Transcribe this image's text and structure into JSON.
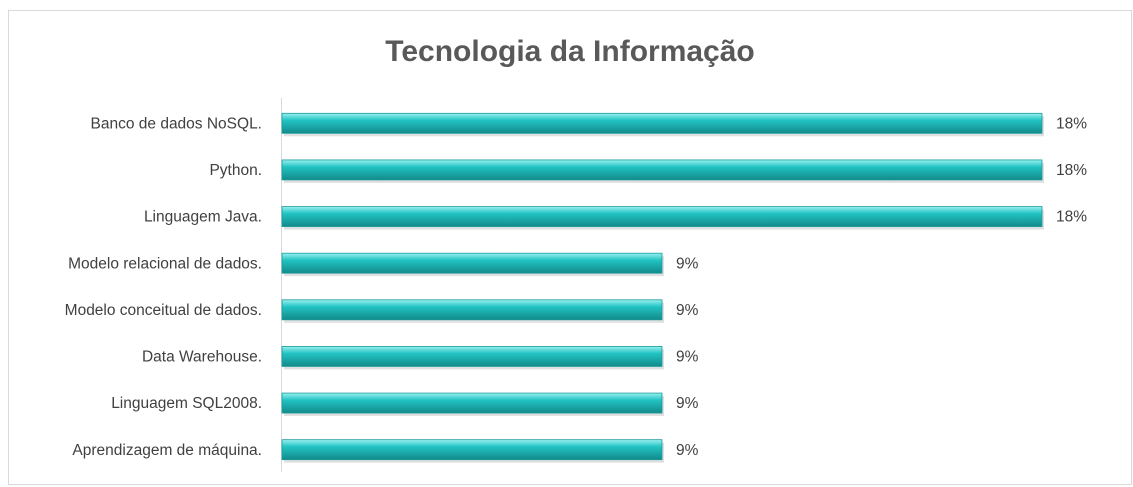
{
  "chart_data": {
    "type": "bar",
    "orientation": "horizontal",
    "title": "Tecnologia da Informação",
    "categories": [
      "Banco de dados NoSQL.",
      "Python.",
      "Linguagem Java.",
      "Modelo relacional de dados.",
      "Modelo conceitual de dados.",
      "Data Warehouse.",
      "Linguagem SQL2008.",
      "Aprendizagem de máquina."
    ],
    "values": [
      18,
      18,
      18,
      9,
      9,
      9,
      9,
      9
    ],
    "value_labels": [
      "18%",
      "18%",
      "18%",
      "9%",
      "9%",
      "9%",
      "9%",
      "9%"
    ],
    "color": "#22c3c3",
    "xlim": [
      0,
      18
    ]
  }
}
